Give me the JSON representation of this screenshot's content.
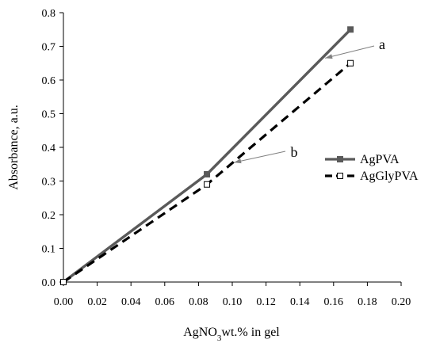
{
  "chart_data": {
    "type": "line",
    "xlabel": {
      "prefix": "AgNO",
      "subscript": "3",
      "suffix": "wt.% in gel"
    },
    "ylabel": "Absorbance, a.u.",
    "xlim": [
      0,
      0.2
    ],
    "ylim": [
      0,
      0.8
    ],
    "x_ticks": [
      "0.00",
      "0.02",
      "0.04",
      "0.06",
      "0.08",
      "0.10",
      "0.12",
      "0.14",
      "0.16",
      "0.18",
      "0.20"
    ],
    "y_ticks": [
      "0.0",
      "0.1",
      "0.2",
      "0.3",
      "0.4",
      "0.5",
      "0.6",
      "0.7",
      "0.8"
    ],
    "grid": false,
    "legend_position": "right",
    "series": [
      {
        "name": "AgPVA",
        "color": "#5a5a5a",
        "line_style": "solid",
        "marker": "filled-square",
        "x": [
          0.0,
          0.085,
          0.17
        ],
        "y": [
          0.0,
          0.32,
          0.75
        ]
      },
      {
        "name": "AgGlyPVA",
        "color": "#000000",
        "line_style": "dashed",
        "marker": "open-square",
        "x": [
          0.0,
          0.085,
          0.17
        ],
        "y": [
          0.0,
          0.29,
          0.65
        ]
      }
    ],
    "annotations": [
      {
        "text": "a",
        "points_to_series": "AgPVA",
        "x": 0.155,
        "y": 0.665
      },
      {
        "text": "b",
        "points_to_series": "AgGlyPVA",
        "x": 0.101,
        "y": 0.355
      }
    ]
  }
}
